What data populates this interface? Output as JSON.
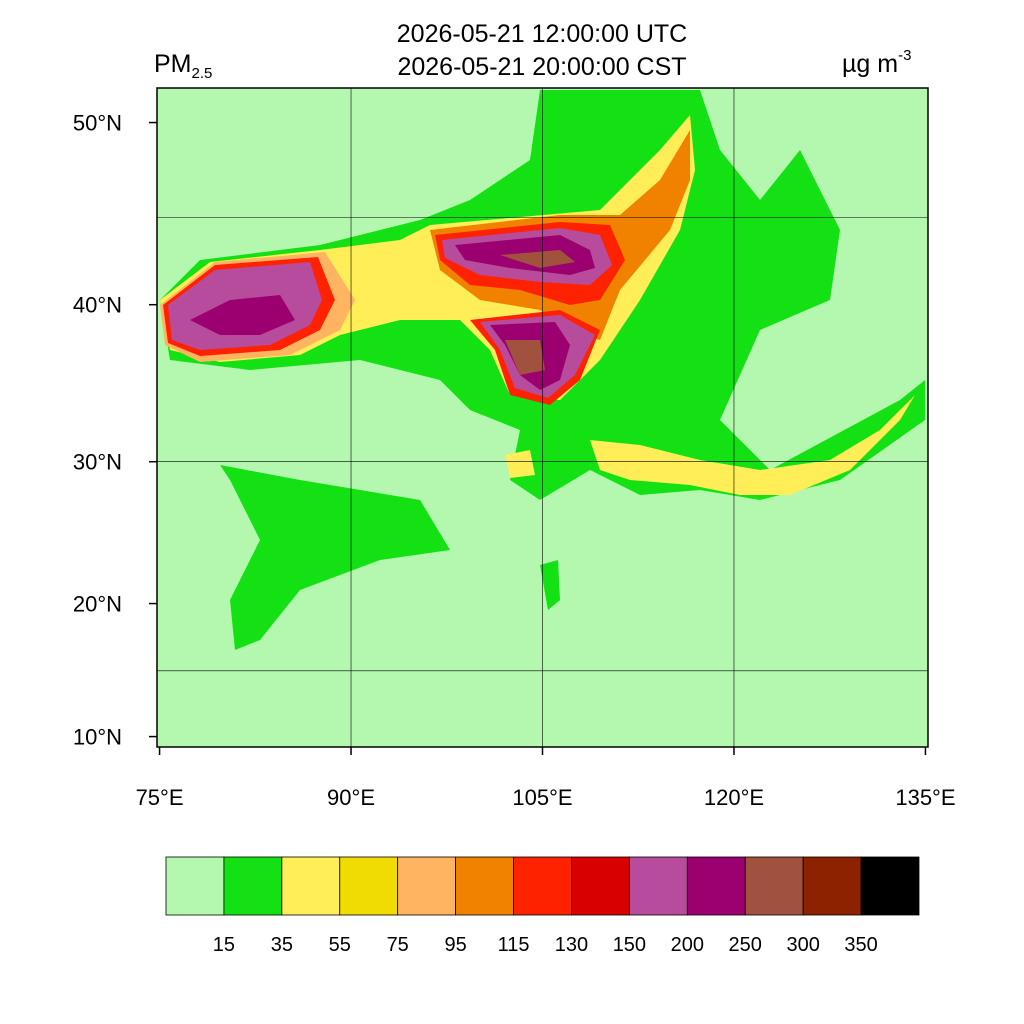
{
  "header": {
    "title_lines": [
      "2026-05-21 12:00:00 UTC",
      "2026-05-21 20:00:00 CST"
    ],
    "left_label": "PM",
    "left_label_subscript": "2.5",
    "right_label": "µg m",
    "right_label_superscript": "-3"
  },
  "map": {
    "projection": "mercator",
    "lonlim": [
      74.8,
      135.2
    ],
    "latlim": [
      9.2,
      51.7
    ],
    "lonticks": [
      {
        "value": 75,
        "label": "75°E"
      },
      {
        "value": 90,
        "label": "90°E"
      },
      {
        "value": 105,
        "label": "105°E"
      },
      {
        "value": 120,
        "label": "120°E"
      },
      {
        "value": 135,
        "label": "135°E"
      }
    ],
    "latticks": [
      {
        "value": 10,
        "label": "10°N"
      },
      {
        "value": 20,
        "label": "20°N"
      },
      {
        "value": 30,
        "label": "30°N"
      },
      {
        "value": 40,
        "label": "40°N"
      },
      {
        "value": 50,
        "label": "50°N"
      }
    ],
    "grid_lon": [
      90,
      105,
      120
    ],
    "grid_lat": [
      15,
      30,
      45
    ]
  },
  "colorbar": {
    "colors": [
      "#b4f8b0",
      "#14e114",
      "#ffee58",
      "#f0dc00",
      "#ffb462",
      "#f08200",
      "#ff2200",
      "#d80000",
      "#b84c9c",
      "#9c0070",
      "#a0523e",
      "#8c2200",
      "#000000"
    ],
    "levels": [
      15,
      35,
      55,
      75,
      95,
      115,
      130,
      150,
      200,
      250,
      300,
      350
    ]
  }
}
